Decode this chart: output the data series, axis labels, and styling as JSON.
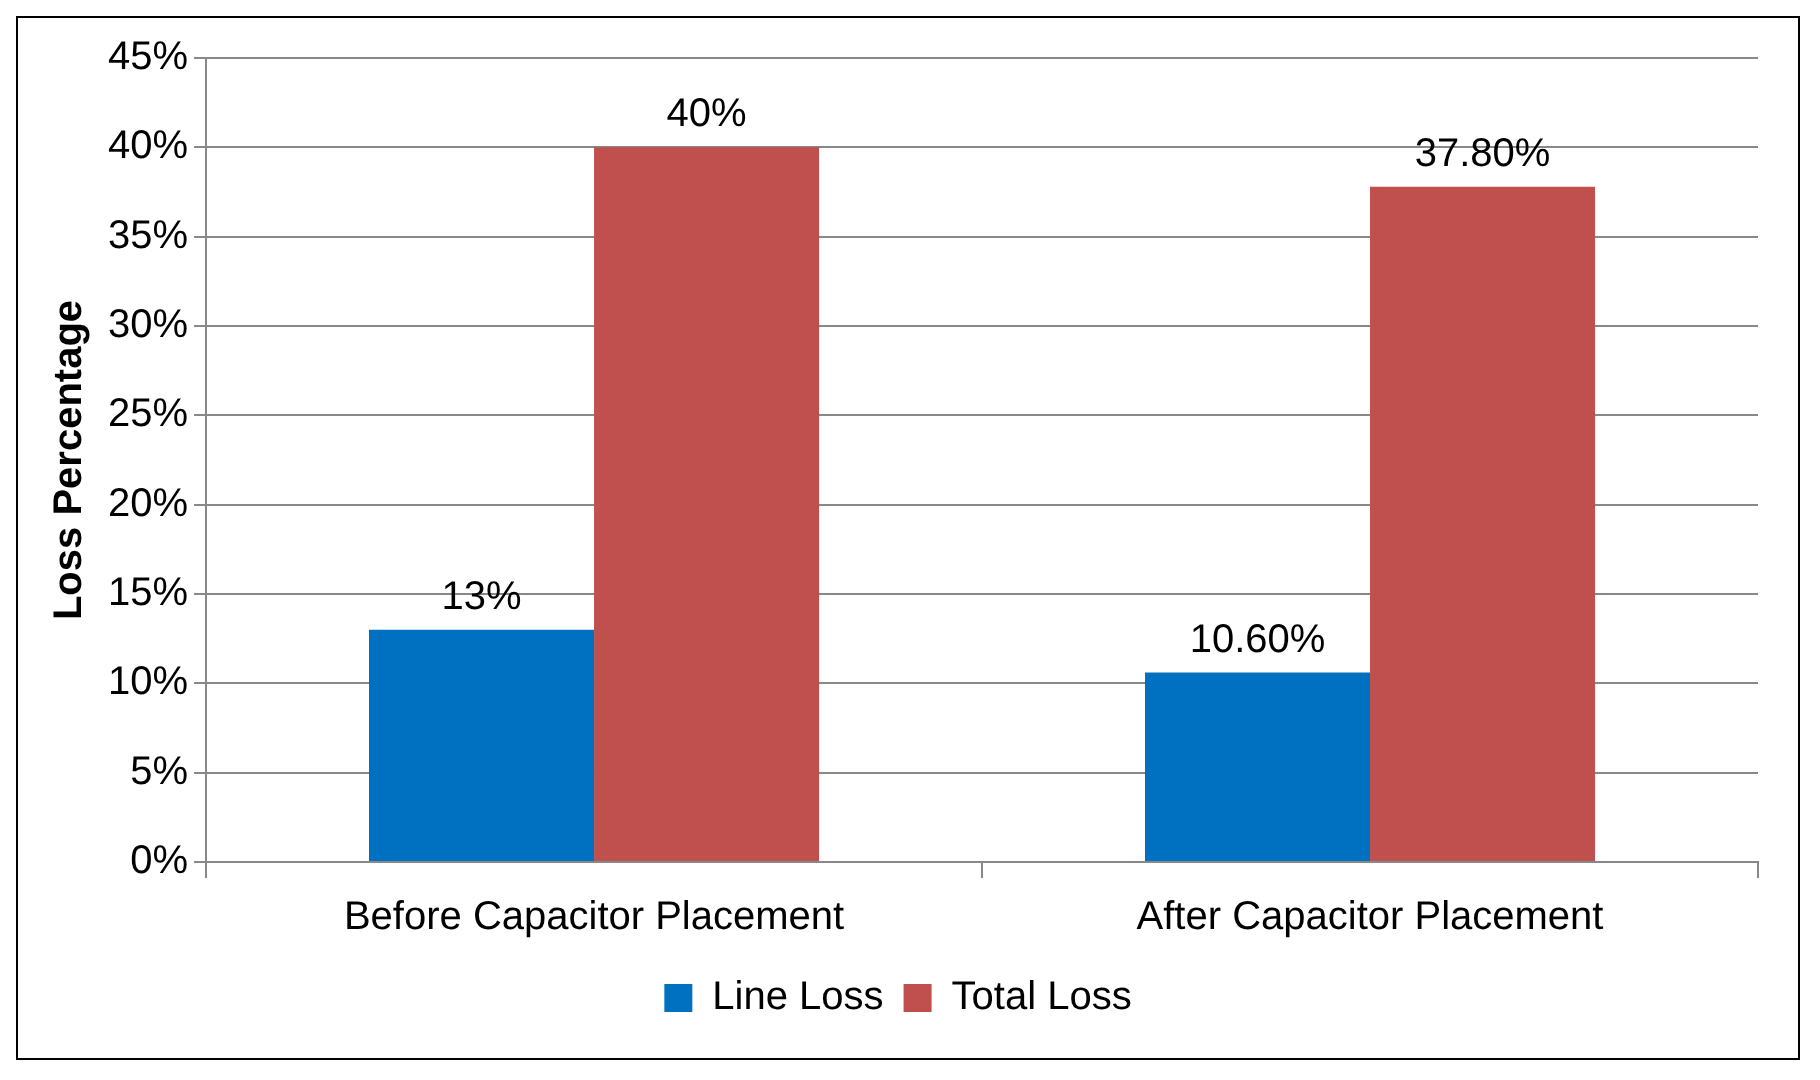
{
  "chart_data": {
    "type": "bar",
    "ylabel": "Loss Percentage",
    "categories": [
      "Before Capacitor Placement",
      "After Capacitor Placement"
    ],
    "series": [
      {
        "name": "Line Loss",
        "color": "#0070c0",
        "values": [
          13,
          10.6
        ],
        "value_labels": [
          "13%",
          "10.60%"
        ]
      },
      {
        "name": "Total Loss",
        "color": "#c0504d",
        "values": [
          40,
          37.8
        ],
        "value_labels": [
          "40%",
          "37.80%"
        ]
      }
    ],
    "ylim": [
      0,
      45
    ],
    "yticks": [
      {
        "value": 0,
        "label": "0%"
      },
      {
        "value": 5,
        "label": "5%"
      },
      {
        "value": 10,
        "label": "10%"
      },
      {
        "value": 15,
        "label": "15%"
      },
      {
        "value": 20,
        "label": "20%"
      },
      {
        "value": 25,
        "label": "25%"
      },
      {
        "value": 30,
        "label": "30%"
      },
      {
        "value": 35,
        "label": "35%"
      },
      {
        "value": 40,
        "label": "40%"
      },
      {
        "value": 45,
        "label": "45%"
      }
    ],
    "grid": "y",
    "legend": "bottom"
  }
}
